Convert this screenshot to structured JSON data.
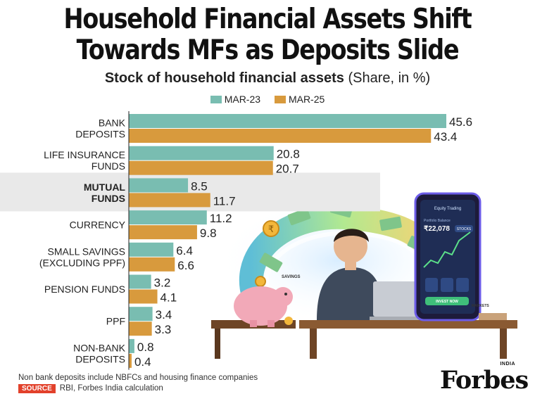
{
  "header": {
    "title_line1": "Household Financial Assets Shift",
    "title_line2": "Towards MFs as Deposits Slide",
    "subtitle_bold": "Stock of household financial assets",
    "subtitle_light": "(Share, in %)"
  },
  "colors": {
    "mar23": "#79bdb1",
    "mar25": "#d89a3d",
    "highlight": "#e9e9e9",
    "source_tag": "#e2412b"
  },
  "chart_data": {
    "type": "bar",
    "orientation": "horizontal",
    "title": "Stock of household financial assets (Share, in %)",
    "categories": [
      [
        "BANK",
        "DEPOSITS"
      ],
      [
        "LIFE INSURANCE",
        "FUNDS"
      ],
      [
        "MUTUAL",
        "FUNDS"
      ],
      [
        "CURRENCY"
      ],
      [
        "SMALL SAVINGS",
        "(EXCLUDING PPF)"
      ],
      [
        "PENSION FUNDS"
      ],
      [
        "PPF"
      ],
      [
        "NON-BANK",
        "DEPOSITS"
      ]
    ],
    "highlighted_category_index": 2,
    "series": [
      {
        "name": "MAR-23",
        "values": [
          45.6,
          20.8,
          8.5,
          11.2,
          6.4,
          3.2,
          3.4,
          0.8
        ]
      },
      {
        "name": "MAR-25",
        "values": [
          43.4,
          20.7,
          11.7,
          9.8,
          6.6,
          4.1,
          3.3,
          0.4
        ]
      }
    ],
    "xlim": [
      0,
      50
    ],
    "value_labels": [
      [
        "45.6",
        "20.8",
        "8.5",
        "11.2",
        "6.4",
        "3.2",
        "3.4",
        "0.8"
      ],
      [
        "43.4",
        "20.7",
        "11.7",
        "9.8",
        "6.6",
        "4.1",
        "3.3",
        "0.4"
      ]
    ],
    "legend_position": "top-center",
    "grid": false
  },
  "illustration": {
    "phone_header": "Equity Trading",
    "phone_balance_label": "Portfolio Balance",
    "phone_balance": "₹22,078",
    "phone_stocks_btn": "STOCKS",
    "phone_invest_btn": "INVEST NOW",
    "savings_label": "SAVINGS",
    "markets_label": "MARKETS",
    "rupee_symbol": "₹"
  },
  "footer": {
    "note": "Non bank deposits include NBFCs and housing finance companies",
    "source_tag": "SOURCE",
    "source_text": "RBI, Forbes India calculation",
    "logo": "Forbes",
    "logo_india": "INDIA"
  }
}
